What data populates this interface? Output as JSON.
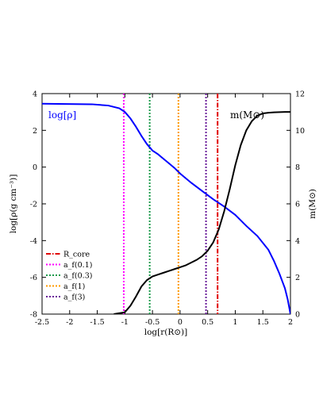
{
  "chart_data": {
    "type": "line",
    "xlabel": "log[r(R⊙)]",
    "ylabel_left": "log[ρ(g cm⁻³)]",
    "ylabel_right": "m(M⊙)",
    "xlim": [
      -2.5,
      2
    ],
    "ylim_left": [
      -8,
      4
    ],
    "ylim_right": [
      0,
      12
    ],
    "x_ticks": [
      -2.5,
      -2,
      -1.5,
      -1,
      -0.5,
      0,
      0.5,
      1,
      1.5,
      2
    ],
    "x_tick_labels": [
      "-2.5",
      "-2",
      "-1.5",
      "-1",
      "-0.5",
      "0",
      "0.5",
      "1",
      "1.5",
      "2"
    ],
    "y_left_ticks": [
      4,
      2,
      0,
      -2,
      -4,
      -6,
      -8
    ],
    "y_left_tick_labels": [
      "4",
      "2",
      "0",
      "-2",
      "-4",
      "-6",
      "-8"
    ],
    "y_right_ticks": [
      12,
      10,
      8,
      6,
      4,
      2,
      0
    ],
    "y_right_tick_labels": [
      "12",
      "10",
      "8",
      "6",
      "4",
      "2",
      "0"
    ],
    "grid": false,
    "legend_position": "bottom-left",
    "series": [
      {
        "name": "log[ρ]",
        "axis": "left",
        "color": "#0000ff",
        "x": [
          -2.5,
          -1.6,
          -1.3,
          -1.1,
          -1.0,
          -0.9,
          -0.8,
          -0.7,
          -0.6,
          -0.5,
          -0.4,
          -0.3,
          -0.2,
          -0.1,
          0.0,
          0.2,
          0.4,
          0.6,
          0.8,
          1.0,
          1.2,
          1.4,
          1.6,
          1.7,
          1.8,
          1.9,
          1.95,
          2.0
        ],
        "y": [
          3.45,
          3.42,
          3.35,
          3.2,
          3.0,
          2.65,
          2.2,
          1.7,
          1.25,
          0.9,
          0.7,
          0.45,
          0.2,
          -0.05,
          -0.35,
          -0.85,
          -1.3,
          -1.75,
          -2.15,
          -2.6,
          -3.2,
          -3.75,
          -4.5,
          -5.1,
          -5.8,
          -6.6,
          -7.2,
          -8.0
        ]
      },
      {
        "name": "m(M⊙)",
        "axis": "right",
        "color": "#000000",
        "x": [
          -1.2,
          -1.0,
          -0.9,
          -0.8,
          -0.7,
          -0.6,
          -0.5,
          -0.4,
          -0.3,
          -0.2,
          -0.1,
          0.0,
          0.1,
          0.2,
          0.3,
          0.4,
          0.5,
          0.6,
          0.7,
          0.8,
          0.9,
          1.0,
          1.1,
          1.2,
          1.3,
          1.4,
          1.5,
          1.6,
          1.7,
          1.8,
          1.9,
          2.0
        ],
        "y": [
          0.0,
          0.1,
          0.45,
          0.95,
          1.5,
          1.85,
          2.05,
          2.15,
          2.25,
          2.35,
          2.45,
          2.55,
          2.65,
          2.8,
          2.95,
          3.15,
          3.45,
          3.9,
          4.6,
          5.6,
          6.8,
          8.1,
          9.2,
          10.0,
          10.5,
          10.8,
          10.92,
          10.96,
          10.98,
          10.99,
          11.0,
          11.0
        ]
      }
    ],
    "vertical_lines": [
      {
        "name": "R_core",
        "x": 0.68,
        "color": "#e00000",
        "style": "dashdot"
      },
      {
        "name": "a_f(0.1)",
        "x": -1.02,
        "color": "#ff00ff",
        "style": "dotted"
      },
      {
        "name": "a_f(0.3)",
        "x": -0.55,
        "color": "#1b9a4b",
        "style": "dotted"
      },
      {
        "name": "a_f(1)",
        "x": -0.03,
        "color": "#ff9900",
        "style": "dotted"
      },
      {
        "name": "a_f(3)",
        "x": 0.47,
        "color": "#6a1b9a",
        "style": "dotted"
      }
    ]
  }
}
